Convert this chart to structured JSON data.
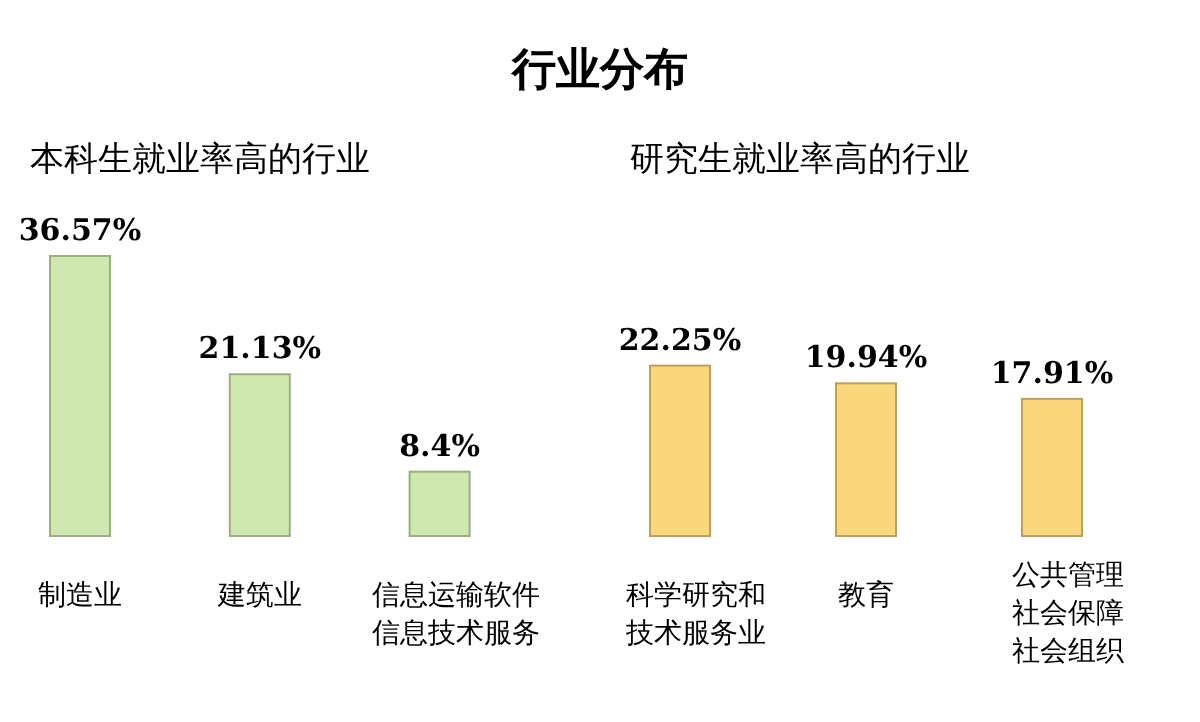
{
  "chart_data": [
    {
      "type": "other",
      "title": "行业分布"
    },
    {
      "type": "bar",
      "title": "本科生就业率高的行业",
      "categories": [
        "制造业",
        "建筑业",
        "信息运输软件信息技术服务"
      ],
      "values": [
        36.57,
        21.13,
        8.4
      ],
      "value_labels": [
        "36.57%",
        "21.13%",
        "8.4%"
      ],
      "color": "#cfe8b0"
    },
    {
      "type": "bar",
      "title": "研究生就业率高的行业",
      "categories": [
        "科学研究和技术服务业",
        "教育",
        "公共管理社会保障社会组织"
      ],
      "values": [
        22.25,
        19.94,
        17.91
      ],
      "value_labels": [
        "22.25%",
        "19.94%",
        "17.91%"
      ],
      "color": "#fad77a"
    }
  ]
}
